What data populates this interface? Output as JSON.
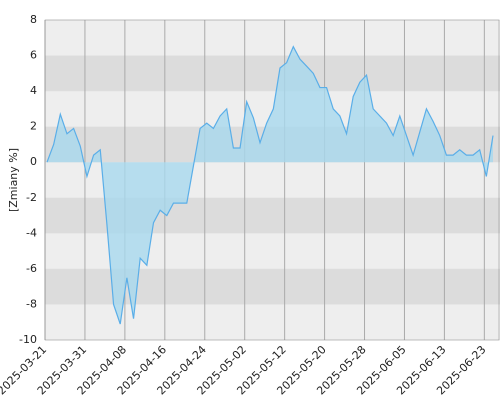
{
  "chart_data": {
    "type": "area",
    "y_label": "[Zmiany %]",
    "categories": [
      "2025-03-21",
      null,
      null,
      null,
      null,
      null,
      "2025-03-31",
      null,
      null,
      null,
      null,
      null,
      "2025-04-08",
      null,
      null,
      null,
      null,
      null,
      "2025-04-16",
      null,
      null,
      null,
      null,
      null,
      "2025-04-24",
      null,
      null,
      null,
      null,
      null,
      "2025-05-02",
      null,
      null,
      null,
      null,
      null,
      "2025-05-12",
      null,
      null,
      null,
      null,
      null,
      "2025-05-20",
      null,
      null,
      null,
      null,
      null,
      "2025-05-28",
      null,
      null,
      null,
      null,
      null,
      "2025-06-05",
      null,
      null,
      null,
      null,
      null,
      "2025-06-13",
      null,
      null,
      null,
      null,
      null,
      "2025-06-23",
      null
    ],
    "values": [
      0,
      1.0,
      2.7,
      1.6,
      1.9,
      0.9,
      -0.8,
      0.4,
      0.7,
      -3.5,
      -8.0,
      -9.1,
      -6.5,
      -8.8,
      -5.4,
      -5.8,
      -3.4,
      -2.7,
      -3.0,
      -2.3,
      -2.3,
      -2.3,
      -0.2,
      1.9,
      2.2,
      1.9,
      2.6,
      3.0,
      0.8,
      0.8,
      3.4,
      2.5,
      1.1,
      2.2,
      3.0,
      5.3,
      5.6,
      6.5,
      5.8,
      5.4,
      5.0,
      4.2,
      4.2,
      3.0,
      2.6,
      1.6,
      3.7,
      4.5,
      4.9,
      3.0,
      2.6,
      2.2,
      1.5,
      2.6,
      1.5,
      0.4,
      1.7,
      3.0,
      2.3,
      1.5,
      0.4,
      0.4,
      0.7,
      0.4,
      0.4,
      0.7,
      -0.8,
      1.5
    ],
    "color": "#5aaee8",
    "fill": "#a8d8ee",
    "ylim": [
      -10,
      8
    ],
    "yticks": [
      -10,
      -8,
      -6,
      -4,
      -2,
      0,
      2,
      4,
      6,
      8
    ],
    "grid": true
  }
}
